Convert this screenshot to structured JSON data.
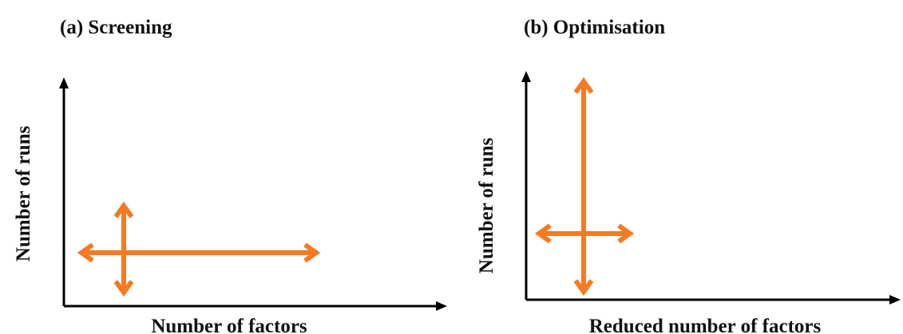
{
  "panels": [
    {
      "id": "screening",
      "title": "(a) Screening",
      "xlabel": "Number  of factors",
      "ylabel": "Number  of runs"
    },
    {
      "id": "optimisation",
      "title": "(b) Optimisation",
      "xlabel": "Reduced number  of factors",
      "ylabel": "Number  of runs"
    }
  ],
  "colors": {
    "axis": "#000000",
    "arrow": "#f47a24",
    "text": "#111111",
    "background": "#ffffff"
  }
}
